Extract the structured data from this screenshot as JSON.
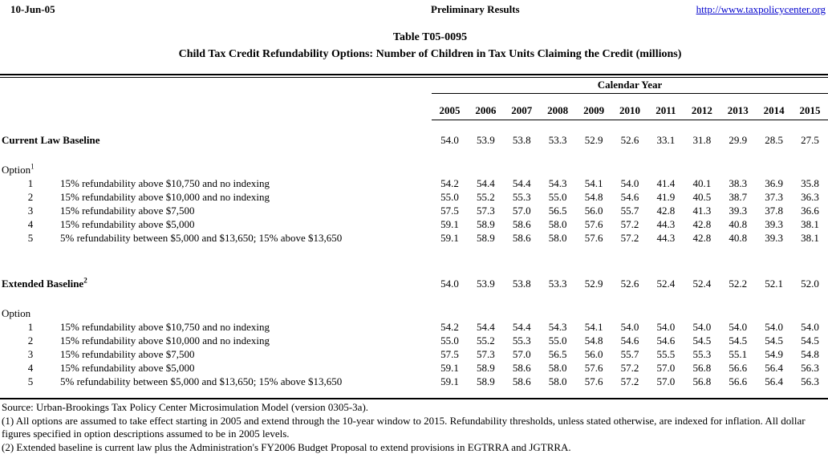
{
  "header": {
    "date": "10-Jun-05",
    "center_label": "Preliminary Results",
    "link": "http://www.taxpolicycenter.org"
  },
  "title": {
    "line1": "Table T05-0095",
    "line2": "Child Tax Credit Refundability Options: Number of Children in Tax Units Claiming the Credit (millions)"
  },
  "table": {
    "group_header": "Calendar Year",
    "years": [
      "2005",
      "2006",
      "2007",
      "2008",
      "2009",
      "2010",
      "2011",
      "2012",
      "2013",
      "2014",
      "2015"
    ],
    "sections": [
      {
        "baseline_label": "Current Law Baseline",
        "baseline_sup": "",
        "baseline_values": [
          "54.0",
          "53.9",
          "53.8",
          "53.3",
          "52.9",
          "52.6",
          "33.1",
          "31.8",
          "29.9",
          "28.5",
          "27.5"
        ],
        "option_label": "Option",
        "option_sup": "1",
        "options": [
          {
            "num": "1",
            "desc": "15% refundability above $10,750 and no indexing",
            "values": [
              "54.2",
              "54.4",
              "54.4",
              "54.3",
              "54.1",
              "54.0",
              "41.4",
              "40.1",
              "38.3",
              "36.9",
              "35.8"
            ]
          },
          {
            "num": "2",
            "desc": "15% refundability above $10,000 and no indexing",
            "values": [
              "55.0",
              "55.2",
              "55.3",
              "55.0",
              "54.8",
              "54.6",
              "41.9",
              "40.5",
              "38.7",
              "37.3",
              "36.3"
            ]
          },
          {
            "num": "3",
            "desc": "15% refundability above $7,500",
            "values": [
              "57.5",
              "57.3",
              "57.0",
              "56.5",
              "56.0",
              "55.7",
              "42.8",
              "41.3",
              "39.3",
              "37.8",
              "36.6"
            ]
          },
          {
            "num": "4",
            "desc": "15% refundability above $5,000",
            "values": [
              "59.1",
              "58.9",
              "58.6",
              "58.0",
              "57.6",
              "57.2",
              "44.3",
              "42.8",
              "40.8",
              "39.3",
              "38.1"
            ]
          },
          {
            "num": "5",
            "desc": "5% refundability between $5,000 and $13,650; 15% above $13,650",
            "values": [
              "59.1",
              "58.9",
              "58.6",
              "58.0",
              "57.6",
              "57.2",
              "44.3",
              "42.8",
              "40.8",
              "39.3",
              "38.1"
            ]
          }
        ]
      },
      {
        "baseline_label": "Extended Baseline",
        "baseline_sup": "2",
        "baseline_values": [
          "54.0",
          "53.9",
          "53.8",
          "53.3",
          "52.9",
          "52.6",
          "52.4",
          "52.4",
          "52.2",
          "52.1",
          "52.0"
        ],
        "option_label": "Option",
        "option_sup": "",
        "options": [
          {
            "num": "1",
            "desc": "15% refundability above $10,750 and no indexing",
            "values": [
              "54.2",
              "54.4",
              "54.4",
              "54.3",
              "54.1",
              "54.0",
              "54.0",
              "54.0",
              "54.0",
              "54.0",
              "54.0"
            ]
          },
          {
            "num": "2",
            "desc": "15% refundability above $10,000 and no indexing",
            "values": [
              "55.0",
              "55.2",
              "55.3",
              "55.0",
              "54.8",
              "54.6",
              "54.6",
              "54.5",
              "54.5",
              "54.5",
              "54.5"
            ]
          },
          {
            "num": "3",
            "desc": "15% refundability above $7,500",
            "values": [
              "57.5",
              "57.3",
              "57.0",
              "56.5",
              "56.0",
              "55.7",
              "55.5",
              "55.3",
              "55.1",
              "54.9",
              "54.8"
            ]
          },
          {
            "num": "4",
            "desc": "15% refundability above $5,000",
            "values": [
              "59.1",
              "58.9",
              "58.6",
              "58.0",
              "57.6",
              "57.2",
              "57.0",
              "56.8",
              "56.6",
              "56.4",
              "56.3"
            ]
          },
          {
            "num": "5",
            "desc": "5% refundability between $5,000 and $13,650; 15% above $13,650",
            "values": [
              "59.1",
              "58.9",
              "58.6",
              "58.0",
              "57.6",
              "57.2",
              "57.0",
              "56.8",
              "56.6",
              "56.4",
              "56.3"
            ]
          }
        ]
      }
    ]
  },
  "footnotes": {
    "source": "Source: Urban-Brookings Tax Policy Center Microsimulation Model (version 0305-3a).",
    "note1": "(1) All options are assumed to take effect starting in 2005 and extend through the 10-year window to 2015.  Refundability thresholds, unless stated otherwise, are indexed for inflation.  All dollar figures specified in option descriptions assumed to be in 2005 levels.",
    "note2": "(2) Extended baseline is current law plus the Administration's FY2006 Budget Proposal to extend provisions in EGTRRA and JGTRRA."
  },
  "colors": {
    "link_blue": "#0000CC"
  }
}
